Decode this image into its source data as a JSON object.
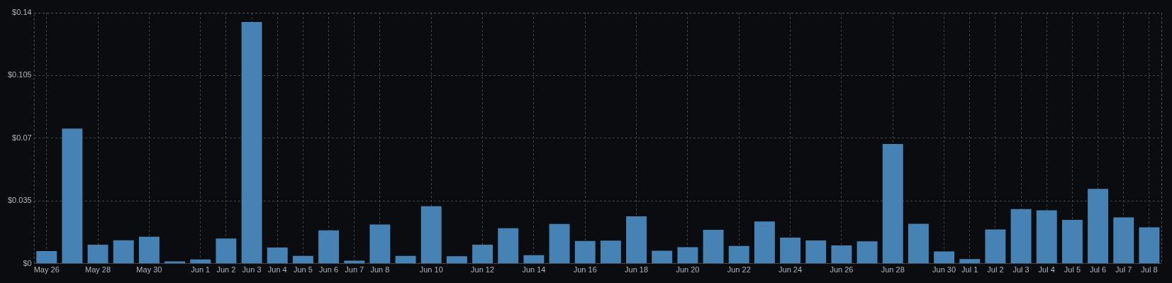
{
  "chart_data": {
    "type": "bar",
    "categories": [
      "May 26",
      null,
      "May 28",
      null,
      "May 30",
      null,
      "Jun 1",
      "Jun 2",
      "Jun 3",
      "Jun 4",
      "Jun 5",
      "Jun 6",
      "Jun 7",
      "Jun 8",
      null,
      "Jun 10",
      null,
      "Jun 12",
      null,
      "Jun 14",
      null,
      "Jun 16",
      null,
      "Jun 18",
      null,
      "Jun 20",
      null,
      "Jun 22",
      null,
      "Jun 24",
      null,
      "Jun 26",
      null,
      "Jun 28",
      null,
      "Jun 30",
      "Jul 1",
      "Jul 2",
      "Jul 3",
      "Jul 4",
      "Jul 5",
      "Jul 6",
      "Jul 7",
      "Jul 8"
    ],
    "values": [
      0.007,
      0.0754,
      0.0106,
      0.0131,
      0.0151,
      0.0013,
      0.0024,
      0.0141,
      0.1349,
      0.009,
      0.0044,
      0.0186,
      0.0017,
      0.0219,
      0.0044,
      0.0321,
      0.0042,
      0.0106,
      0.0198,
      0.0048,
      0.0222,
      0.0127,
      0.0129,
      0.0264,
      0.0072,
      0.0092,
      0.0189,
      0.0099,
      0.0236,
      0.0146,
      0.013,
      0.0102,
      0.0125,
      0.0668,
      0.0223,
      0.0068,
      0.0026,
      0.0191,
      0.0305,
      0.0298,
      0.0245,
      0.0418,
      0.0258,
      0.0203
    ],
    "color": "#4682b4",
    "ylim": [
      0,
      0.14
    ],
    "yticks": [
      {
        "value": 0,
        "label": "$0"
      },
      {
        "value": 0.035,
        "label": "$0.035"
      },
      {
        "value": 0.07,
        "label": "$0.07"
      },
      {
        "value": 0.105,
        "label": "$0.105"
      },
      {
        "value": 0.14,
        "label": "$0.14"
      }
    ],
    "grid": true
  }
}
